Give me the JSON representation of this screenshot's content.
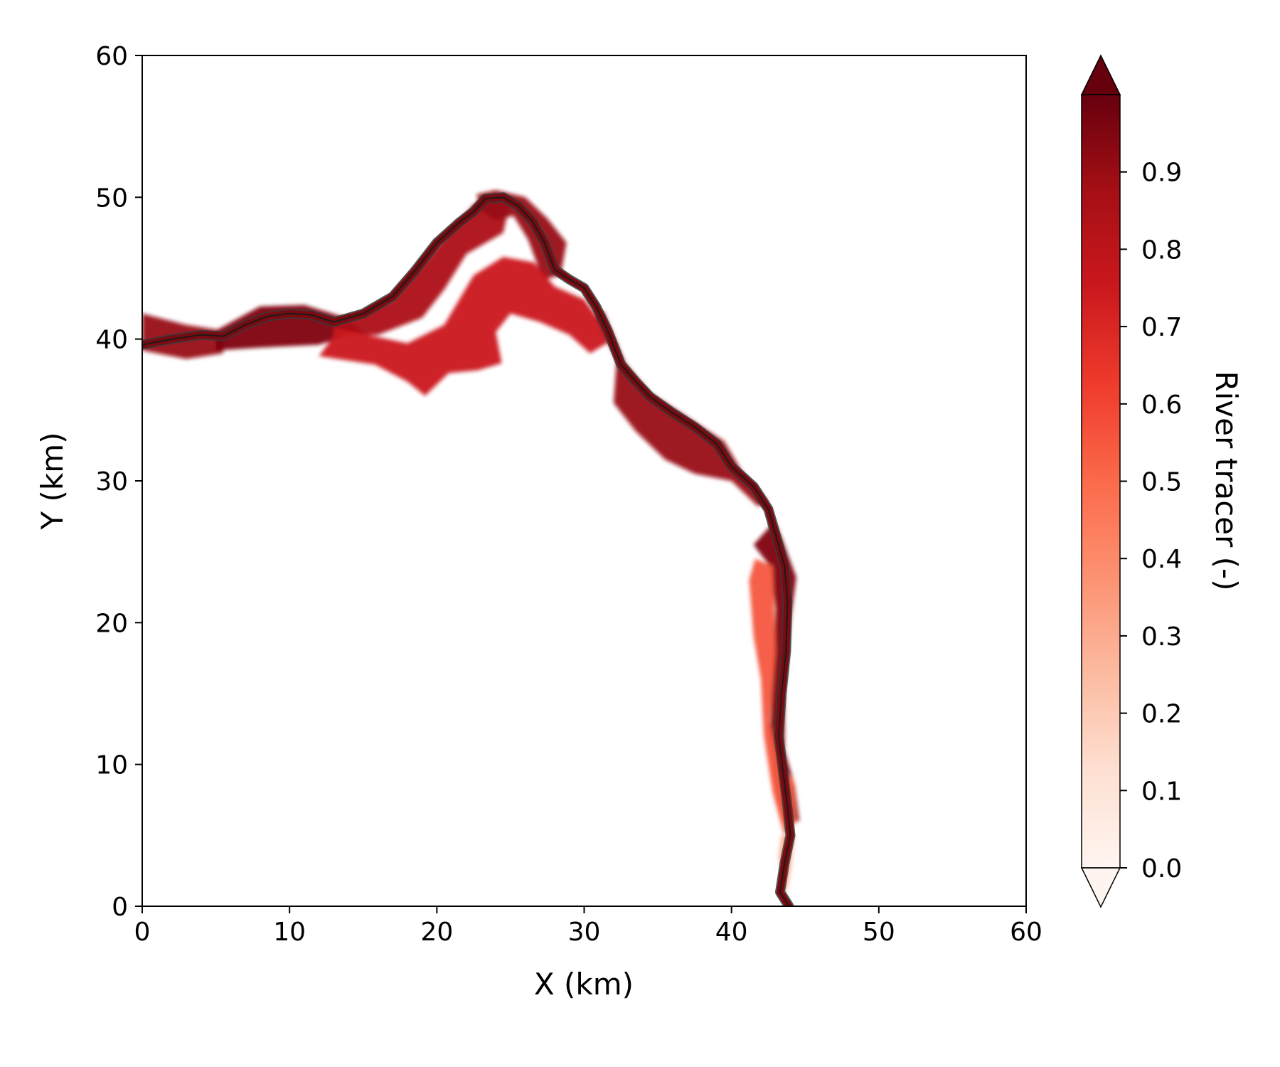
{
  "chart_data": {
    "type": "heatmap",
    "title": "",
    "xlabel": "X (km)",
    "ylabel": "Y (km)",
    "xlim": [
      0,
      60
    ],
    "ylim": [
      0,
      60
    ],
    "xticks": [
      0,
      10,
      20,
      30,
      40,
      50,
      60
    ],
    "yticks": [
      0,
      10,
      20,
      30,
      40,
      50,
      60
    ],
    "xtick_labels": [
      "0",
      "10",
      "20",
      "30",
      "40",
      "50",
      "60"
    ],
    "ytick_labels": [
      "0",
      "10",
      "20",
      "30",
      "40",
      "50",
      "60"
    ],
    "grid": false,
    "colormap": "Reds",
    "colorbar": {
      "label": "River tracer (-)",
      "min": 0.0,
      "max": 1.0,
      "extend": "both",
      "ticks": [
        0.0,
        0.1,
        0.2,
        0.3,
        0.4,
        0.5,
        0.6,
        0.7,
        0.8,
        0.9
      ],
      "tick_labels": [
        "0.0",
        "0.1",
        "0.2",
        "0.3",
        "0.4",
        "0.5",
        "0.6",
        "0.7",
        "0.8",
        "0.9"
      ],
      "colors": [
        "#fff5f0",
        "#fee0d2",
        "#fcbba1",
        "#fc9272",
        "#fb6a4a",
        "#ef3b2c",
        "#cb181d",
        "#a50f15",
        "#67000d"
      ]
    },
    "river_centerline": [
      [
        0,
        39.6
      ],
      [
        2,
        40.0
      ],
      [
        4,
        40.3
      ],
      [
        5.5,
        40.2
      ],
      [
        7,
        41.0
      ],
      [
        8.5,
        41.6
      ],
      [
        10,
        41.8
      ],
      [
        11.5,
        41.7
      ],
      [
        13,
        41.2
      ],
      [
        15,
        41.8
      ],
      [
        17,
        43.0
      ],
      [
        18.5,
        44.8
      ],
      [
        20,
        46.8
      ],
      [
        21.5,
        48.2
      ],
      [
        22.5,
        49.0
      ],
      [
        23.3,
        49.9
      ],
      [
        24.5,
        50.0
      ],
      [
        25.5,
        49.4
      ],
      [
        26.5,
        48.3
      ],
      [
        27.3,
        46.8
      ],
      [
        28.0,
        44.9
      ],
      [
        29.0,
        44.2
      ],
      [
        30.0,
        43.6
      ],
      [
        30.8,
        42.3
      ],
      [
        31.6,
        40.6
      ],
      [
        32.5,
        38.2
      ],
      [
        33.5,
        37.0
      ],
      [
        34.5,
        35.9
      ],
      [
        36.0,
        34.8
      ],
      [
        37.5,
        33.8
      ],
      [
        39.0,
        32.6
      ],
      [
        40.0,
        31.0
      ],
      [
        41.5,
        29.6
      ],
      [
        42.5,
        28.0
      ],
      [
        43.0,
        26.2
      ],
      [
        43.6,
        24.0
      ],
      [
        43.8,
        21.5
      ],
      [
        43.7,
        18.0
      ],
      [
        43.4,
        15.0
      ],
      [
        43.2,
        12.0
      ],
      [
        43.5,
        9.5
      ],
      [
        43.8,
        7.0
      ],
      [
        44.0,
        5.0
      ],
      [
        43.6,
        3.0
      ],
      [
        43.3,
        1.0
      ],
      [
        43.9,
        0.0
      ]
    ],
    "regions": [
      {
        "value": 0.9,
        "polygon": [
          [
            0,
            41.8
          ],
          [
            3,
            41.0
          ],
          [
            5.5,
            40.6
          ],
          [
            5.5,
            39.0
          ],
          [
            3,
            38.6
          ],
          [
            1,
            39.0
          ],
          [
            0,
            39.2
          ]
        ]
      },
      {
        "value": 0.95,
        "polygon": [
          [
            5,
            40.6
          ],
          [
            8,
            42.3
          ],
          [
            11,
            42.4
          ],
          [
            13.5,
            41.6
          ],
          [
            15,
            40.6
          ],
          [
            12,
            39.6
          ],
          [
            8,
            39.4
          ],
          [
            5,
            39.2
          ]
        ]
      },
      {
        "value": 0.85,
        "polygon": [
          [
            13,
            41.0
          ],
          [
            17,
            42.8
          ],
          [
            20,
            46.5
          ],
          [
            22.5,
            49.5
          ],
          [
            23.5,
            50.2
          ],
          [
            25,
            49.8
          ],
          [
            24.5,
            47.5
          ],
          [
            22,
            46.0
          ],
          [
            20.5,
            43.5
          ],
          [
            19,
            41.5
          ],
          [
            16,
            40.3
          ],
          [
            13.5,
            40.3
          ]
        ]
      },
      {
        "value": 0.9,
        "polygon": [
          [
            22.7,
            50.2
          ],
          [
            24,
            50.5
          ],
          [
            26,
            50.0
          ],
          [
            27.5,
            48.5
          ],
          [
            28.8,
            46.8
          ],
          [
            28.4,
            44.5
          ],
          [
            27.2,
            44.2
          ],
          [
            26.2,
            47.0
          ],
          [
            25.2,
            48.7
          ],
          [
            24.0,
            48.4
          ],
          [
            23.0,
            49.0
          ]
        ]
      },
      {
        "value": 0.75,
        "polygon": [
          [
            13,
            40.8
          ],
          [
            18,
            39.7
          ],
          [
            20.5,
            41.0
          ],
          [
            22.5,
            44.5
          ],
          [
            24.5,
            45.8
          ],
          [
            26.6,
            45.4
          ],
          [
            28,
            43.7
          ],
          [
            30,
            42.8
          ],
          [
            32,
            40.0
          ],
          [
            30.4,
            39.0
          ],
          [
            29.0,
            40.3
          ],
          [
            27.0,
            41.2
          ],
          [
            25.0,
            41.8
          ],
          [
            24.0,
            40.5
          ],
          [
            24.4,
            38.3
          ],
          [
            22.8,
            37.8
          ],
          [
            20.8,
            37.6
          ],
          [
            19.2,
            36.0
          ],
          [
            18.0,
            37.0
          ],
          [
            15.8,
            38.2
          ],
          [
            12.0,
            38.8
          ],
          [
            13.0,
            40.2
          ]
        ]
      },
      {
        "value": 0.9,
        "polygon": [
          [
            31.3,
            42.0
          ],
          [
            32.8,
            38.3
          ],
          [
            34.5,
            36.2
          ],
          [
            37.0,
            34.5
          ],
          [
            39.5,
            32.8
          ],
          [
            40.8,
            30.5
          ],
          [
            42.5,
            28.5
          ],
          [
            41.8,
            28.2
          ],
          [
            40.0,
            30.0
          ],
          [
            37.5,
            30.5
          ],
          [
            35.5,
            31.5
          ],
          [
            33.5,
            33.5
          ],
          [
            32.0,
            35.5
          ],
          [
            32.2,
            38.5
          ],
          [
            30.8,
            41.5
          ]
        ]
      },
      {
        "value": 0.95,
        "polygon": [
          [
            42.3,
            28.6
          ],
          [
            43.4,
            26.0
          ],
          [
            44.4,
            23.2
          ],
          [
            44.0,
            20.0
          ],
          [
            43.6,
            15.0
          ],
          [
            43.6,
            11.0
          ],
          [
            44.3,
            8.5
          ],
          [
            44.6,
            6.0
          ],
          [
            43.4,
            6.0
          ],
          [
            43.0,
            9.0
          ],
          [
            42.6,
            12.0
          ],
          [
            42.8,
            16.0
          ],
          [
            43.0,
            21.0
          ],
          [
            42.6,
            24.0
          ],
          [
            41.5,
            25.5
          ],
          [
            42.8,
            27.0
          ]
        ]
      },
      {
        "value": 0.55,
        "polygon": [
          [
            41.6,
            24.5
          ],
          [
            42.8,
            24.0
          ],
          [
            43.0,
            18.0
          ],
          [
            42.6,
            13.0
          ],
          [
            43.4,
            9.5
          ],
          [
            44.2,
            9.0
          ],
          [
            44.4,
            6.0
          ],
          [
            43.6,
            5.0
          ],
          [
            42.8,
            8.0
          ],
          [
            42.2,
            12.0
          ],
          [
            42.0,
            16.0
          ],
          [
            41.5,
            19.0
          ],
          [
            41.2,
            23.0
          ]
        ]
      },
      {
        "value": 0.3,
        "polygon": [
          [
            43.4,
            5.0
          ],
          [
            44.3,
            5.0
          ],
          [
            44.0,
            2.5
          ],
          [
            43.7,
            0.8
          ],
          [
            43.5,
            1.8
          ],
          [
            43.2,
            3.5
          ]
        ]
      }
    ]
  }
}
